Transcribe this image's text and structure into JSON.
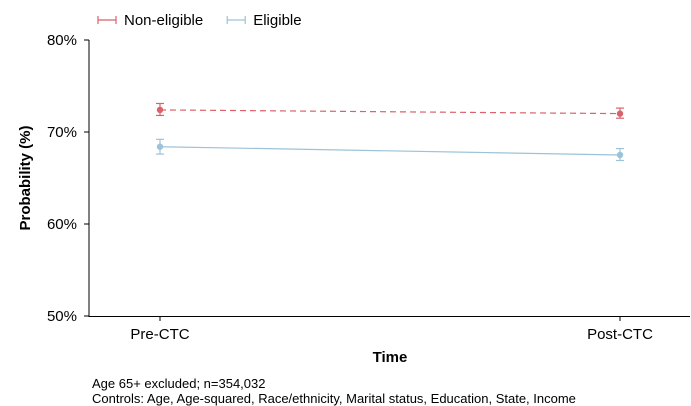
{
  "chart_data": {
    "type": "line",
    "title": "",
    "xlabel": "Time",
    "ylabel": "Probability (%)",
    "categories": [
      "Pre-CTC",
      "Post-CTC"
    ],
    "ylim": [
      50,
      80
    ],
    "yticks": [
      "50%",
      "60%",
      "70%",
      "80%"
    ],
    "ytick_values": [
      50,
      60,
      70,
      80
    ],
    "legend_position": "top-left",
    "grid": false,
    "series": [
      {
        "name": "Non-eligible",
        "color": "#d9626b",
        "line_style": "dashed",
        "values": [
          72.4,
          72.0
        ],
        "ci_lower": [
          71.8,
          71.5
        ],
        "ci_upper": [
          73.1,
          72.6
        ]
      },
      {
        "name": "Eligible",
        "color": "#9cc3d8",
        "line_style": "solid",
        "values": [
          68.4,
          67.5
        ],
        "ci_lower": [
          67.6,
          66.9
        ],
        "ci_upper": [
          69.2,
          68.2
        ]
      }
    ]
  },
  "notes": {
    "line1": "Age 65+ excluded; n=354,032",
    "line2": "Controls: Age, Age-squared, Race/ethnicity, Marital status, Education, State, Income"
  }
}
